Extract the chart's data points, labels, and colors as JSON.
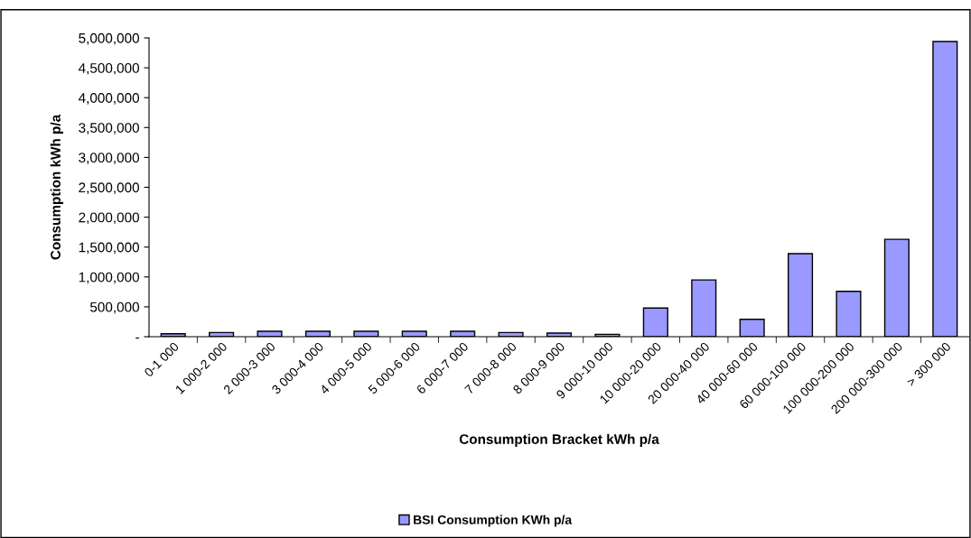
{
  "chart_data": {
    "type": "bar",
    "xlabel": "Consumption Bracket kWh p/a",
    "ylabel": "Consumption kWh p/a",
    "categories": [
      "0-1 000",
      "1 000-2 000",
      "2 000-3 000",
      "3 000-4 000",
      "4 000-5 000",
      "5 000-6 000",
      "6 000-7 000",
      "7 000-8 000",
      "8 000-9 000",
      "9 000-10 000",
      "10 000-20 000",
      "20 000-40 000",
      "40 000-60 000",
      "60 000-100 000",
      "100 000-200 000",
      "200 000-300 000",
      "> 300 000"
    ],
    "series": [
      {
        "name": "BSI Consumption KWh p/a",
        "color": "#9999ff",
        "values": [
          50000,
          70000,
          90000,
          90000,
          90000,
          90000,
          90000,
          70000,
          60000,
          40000,
          480000,
          950000,
          290000,
          1390000,
          760000,
          1630000,
          4940000
        ]
      }
    ],
    "ylim": [
      0,
      5000000
    ],
    "yticks": [
      {
        "value": 0,
        "label": "-"
      },
      {
        "value": 500000,
        "label": "500,000"
      },
      {
        "value": 1000000,
        "label": "1,000,000"
      },
      {
        "value": 1500000,
        "label": "1,500,000"
      },
      {
        "value": 2000000,
        "label": "2,000,000"
      },
      {
        "value": 2500000,
        "label": "2,500,000"
      },
      {
        "value": 3000000,
        "label": "3,000,000"
      },
      {
        "value": 3500000,
        "label": "3,500,000"
      },
      {
        "value": 4000000,
        "label": "4,000,000"
      },
      {
        "value": 4500000,
        "label": "4,500,000"
      },
      {
        "value": 5000000,
        "label": "5,000,000"
      }
    ],
    "grid": false,
    "legend": "bottom"
  }
}
